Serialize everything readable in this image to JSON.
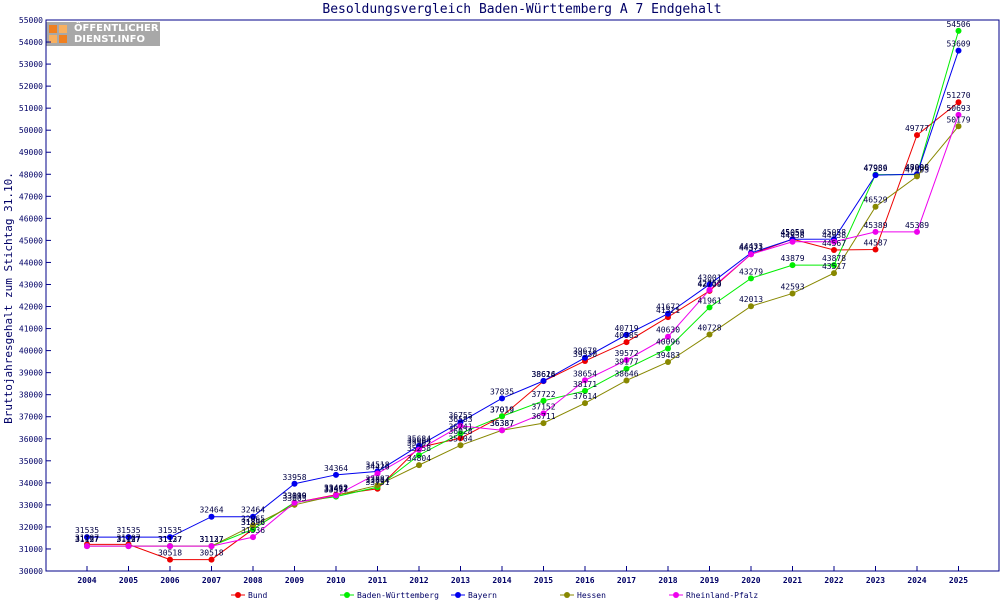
{
  "logo_text": [
    "ÖFFENTLICHER",
    "DIENST.INFO"
  ],
  "chart_data": {
    "type": "line",
    "title": "Besoldungsvergleich Baden-Württemberg A 7 Endgehalt",
    "ylabel": "Bruttojahresgehalt zum Stichtag 31.10.",
    "xlabel": "",
    "ylim": [
      30000,
      55000
    ],
    "yticks": [
      30000,
      31000,
      32000,
      33000,
      34000,
      35000,
      36000,
      37000,
      38000,
      39000,
      40000,
      41000,
      42000,
      43000,
      44000,
      45000,
      46000,
      47000,
      48000,
      49000,
      50000,
      51000,
      52000,
      53000,
      54000,
      55000
    ],
    "categories": [
      "2004",
      "2005",
      "2006",
      "2007",
      "2008",
      "2009",
      "2010",
      "2011",
      "2012",
      "2013",
      "2014",
      "2015",
      "2016",
      "2017",
      "2018",
      "2019",
      "2020",
      "2021",
      "2022",
      "2023",
      "2024",
      "2025"
    ],
    "grid": false,
    "legend_position": "bottom",
    "series": [
      {
        "name": "Bund",
        "color": "#ee0000",
        "values": [
          31207,
          31207,
          30518,
          30518,
          31896,
          33099,
          33462,
          33731,
          35604,
          36028,
          37019,
          38614,
          39530,
          40385,
          41521,
          42709,
          44371,
          45056,
          44567,
          44587,
          49777,
          51270
        ]
      },
      {
        "name": "Baden-Württemberg",
        "color": "#00ee00",
        "values": [
          31137,
          31137,
          31137,
          31137,
          31896,
          33110,
          33377,
          33804,
          35258,
          36241,
          37019,
          37722,
          38171,
          39177,
          40096,
          41961,
          43279,
          43879,
          43878,
          47986,
          47986,
          54506
        ]
      },
      {
        "name": "Bayern",
        "color": "#0000ee",
        "values": [
          31535,
          31535,
          31535,
          32464,
          32464,
          33958,
          34364,
          34518,
          35684,
          36755,
          37835,
          38626,
          39678,
          40719,
          41672,
          43001,
          44433,
          45052,
          45058,
          47959,
          48008,
          53609
        ]
      },
      {
        "name": "Hessen",
        "color": "#888800",
        "values": [
          31127,
          31127,
          31127,
          31127,
          32065,
          33003,
          33432,
          33887,
          34804,
          35704,
          36387,
          36711,
          37614,
          38646,
          39483,
          40728,
          42013,
          42593,
          43517,
          46529,
          47903,
          50179
        ]
      },
      {
        "name": "Rheinland-Pfalz",
        "color": "#ee00ee",
        "values": [
          31127,
          31127,
          31127,
          31127,
          31536,
          33099,
          33431,
          34426,
          35502,
          36583,
          36387,
          37152,
          38654,
          39572,
          40630,
          42753,
          44371,
          44938,
          44938,
          45389,
          45389,
          50693
        ]
      }
    ]
  }
}
